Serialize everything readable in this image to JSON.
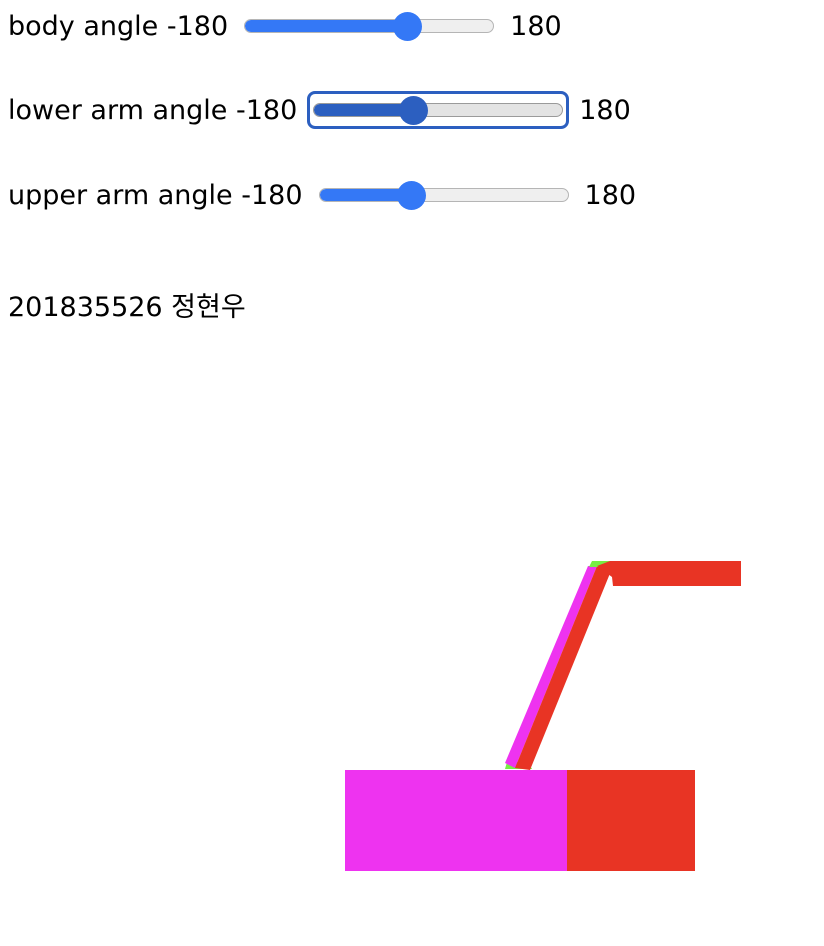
{
  "controls": [
    {
      "label": "body angle",
      "min": "-180",
      "max": "180",
      "value": 0.65,
      "focused": false
    },
    {
      "label": "lower arm angle",
      "min": "-180",
      "max": "180",
      "value": 0.4,
      "focused": true
    },
    {
      "label": "upper arm angle",
      "min": "-180",
      "max": "180",
      "value": 0.37,
      "focused": false
    }
  ],
  "student_line": "201835526 정현우",
  "colors": {
    "slider_accent": "#3478f6",
    "slider_focus": "#2c5fc0",
    "face_magenta": "#ee33f0",
    "face_red": "#e83424",
    "joint_green": "#77ee44"
  }
}
